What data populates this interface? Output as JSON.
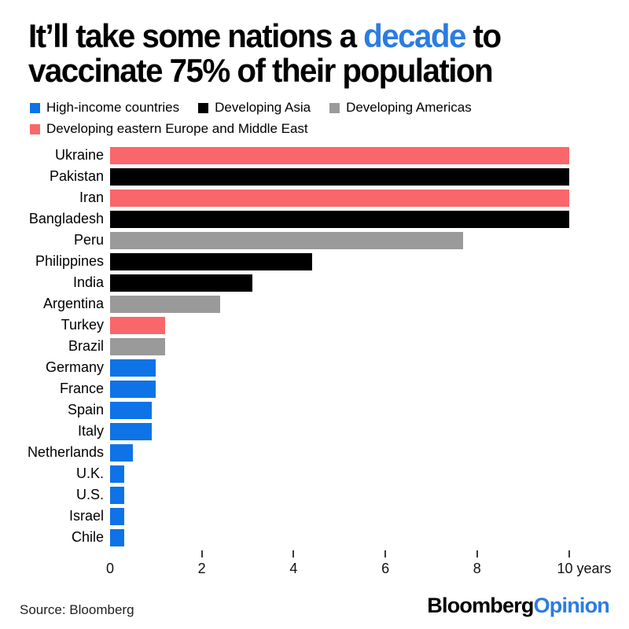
{
  "title": {
    "line1_pre": "It’ll take some nations a ",
    "line1_accent": "decade",
    "line1_post": " to",
    "line2": "vaccinate 75% of their population"
  },
  "legend": [
    {
      "label": "High-income countries",
      "group": "high_income"
    },
    {
      "label": "Developing Asia",
      "group": "developing_asia"
    },
    {
      "label": "Developing Americas",
      "group": "developing_americas"
    },
    {
      "label": "Developing eastern Europe and Middle East",
      "group": "developing_europe_me"
    }
  ],
  "colors": {
    "accent_blue": "#2b7ce1",
    "tick": "#3a3a3a"
  },
  "chart_data": {
    "type": "bar",
    "orientation": "horizontal",
    "title": "It'll take some nations a decade to vaccinate 75% of their population",
    "xlabel": "years",
    "xlim": [
      0,
      10
    ],
    "x_ticks": [
      0,
      2,
      4,
      6,
      8,
      10
    ],
    "x_tick_labels": [
      "0",
      "2",
      "4",
      "6",
      "8",
      "10 years"
    ],
    "grid": false,
    "legend_position": "top",
    "group_colors": {
      "high_income": "#0d73e6",
      "developing_asia": "#000000",
      "developing_americas": "#9a9a9a",
      "developing_europe_me": "#f9676b"
    },
    "categories": [
      "Ukraine",
      "Pakistan",
      "Iran",
      "Bangladesh",
      "Peru",
      "Philippines",
      "India",
      "Argentina",
      "Turkey",
      "Brazil",
      "Germany",
      "France",
      "Spain",
      "Italy",
      "Netherlands",
      "U.K.",
      "U.S.",
      "Israel",
      "Chile"
    ],
    "values": [
      10,
      10,
      10,
      10,
      7.7,
      4.4,
      3.1,
      2.4,
      1.2,
      1.2,
      1.0,
      1.0,
      0.9,
      0.9,
      0.5,
      0.3,
      0.3,
      0.3,
      0.3
    ],
    "bars": [
      {
        "country": "Ukraine",
        "value": 10,
        "group": "developing_europe_me"
      },
      {
        "country": "Pakistan",
        "value": 10,
        "group": "developing_asia"
      },
      {
        "country": "Iran",
        "value": 10,
        "group": "developing_europe_me"
      },
      {
        "country": "Bangladesh",
        "value": 10,
        "group": "developing_asia"
      },
      {
        "country": "Peru",
        "value": 7.7,
        "group": "developing_americas"
      },
      {
        "country": "Philippines",
        "value": 4.4,
        "group": "developing_asia"
      },
      {
        "country": "India",
        "value": 3.1,
        "group": "developing_asia"
      },
      {
        "country": "Argentina",
        "value": 2.4,
        "group": "developing_americas"
      },
      {
        "country": "Turkey",
        "value": 1.2,
        "group": "developing_europe_me"
      },
      {
        "country": "Brazil",
        "value": 1.2,
        "group": "developing_americas"
      },
      {
        "country": "Germany",
        "value": 1.0,
        "group": "high_income"
      },
      {
        "country": "France",
        "value": 1.0,
        "group": "high_income"
      },
      {
        "country": "Spain",
        "value": 0.9,
        "group": "high_income"
      },
      {
        "country": "Italy",
        "value": 0.9,
        "group": "high_income"
      },
      {
        "country": "Netherlands",
        "value": 0.5,
        "group": "high_income"
      },
      {
        "country": "U.K.",
        "value": 0.3,
        "group": "high_income"
      },
      {
        "country": "U.S.",
        "value": 0.3,
        "group": "high_income"
      },
      {
        "country": "Israel",
        "value": 0.3,
        "group": "high_income"
      },
      {
        "country": "Chile",
        "value": 0.3,
        "group": "high_income"
      }
    ]
  },
  "footer": {
    "source": "Source: Bloomberg",
    "brand_black": "Bloomberg",
    "brand_accent": "Opinion"
  }
}
